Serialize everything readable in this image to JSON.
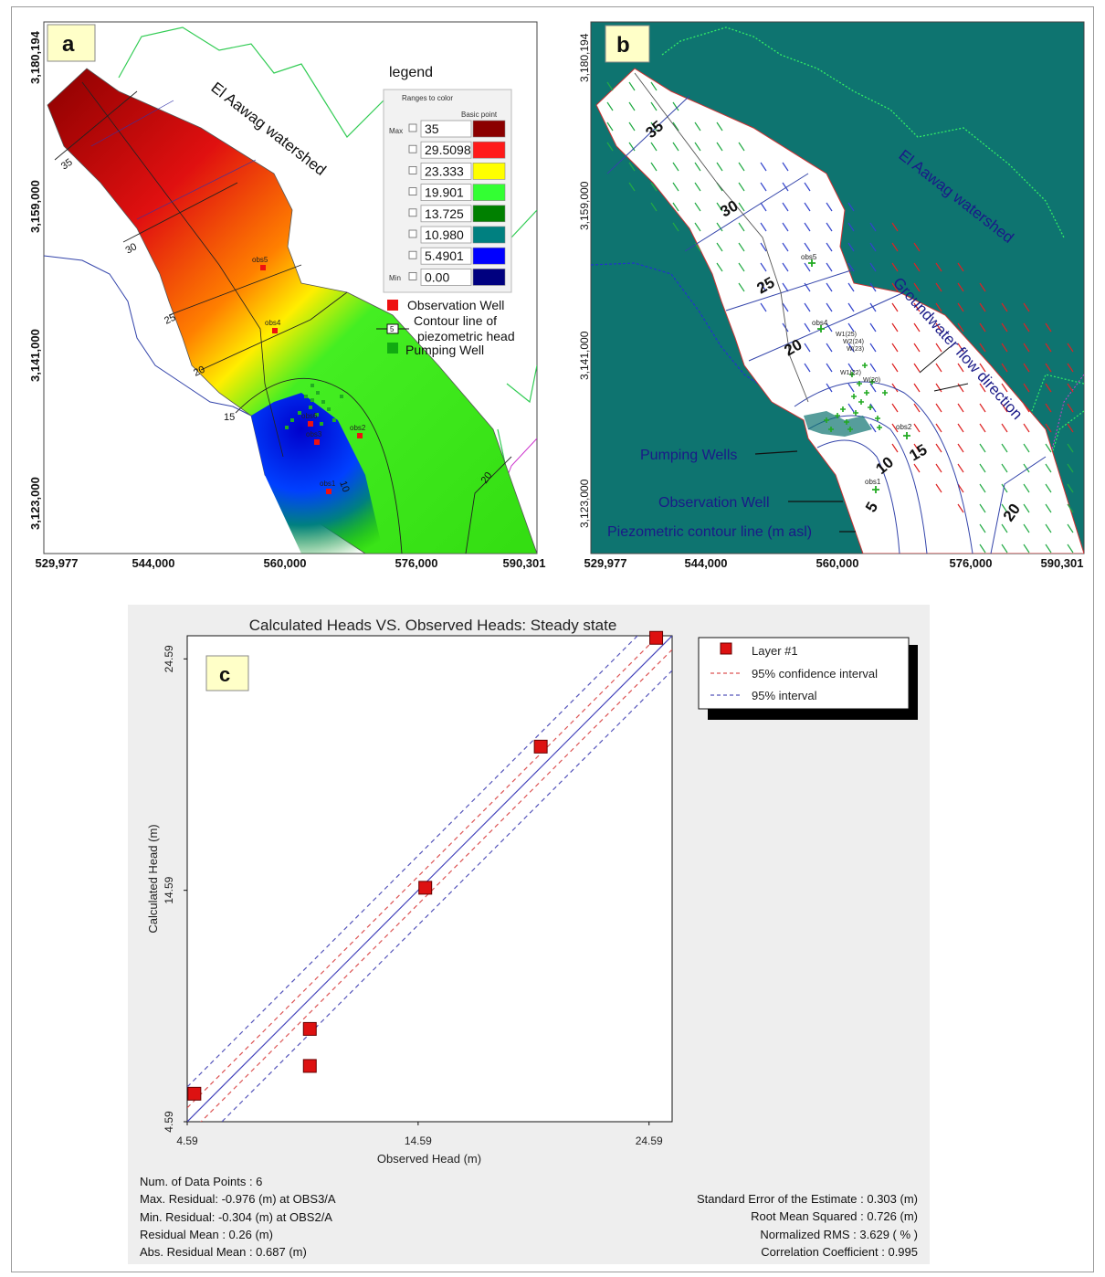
{
  "panel_a": {
    "label": "a",
    "watershed_label": "El Aawag watershed",
    "legend_title": "legend",
    "ranges_title": "Ranges to color",
    "basic_point_label": "Basic point",
    "max_label": "Max",
    "min_label": "Min",
    "ranges": [
      {
        "value": "35",
        "color": "#8b0000"
      },
      {
        "value": "29.5098",
        "color": "#ff1a1a"
      },
      {
        "value": "23.333",
        "color": "#ffff00"
      },
      {
        "value": "19.901",
        "color": "#33ff33"
      },
      {
        "value": "13.725",
        "color": "#008000"
      },
      {
        "value": "10.980",
        "color": "#008080"
      },
      {
        "value": "5.4901",
        "color": "#0000ff"
      },
      {
        "value": "0.00",
        "color": "#00007f"
      }
    ],
    "legend_items": {
      "observation": "Observation Well",
      "contour_line1": "Contour line of",
      "contour_line2": "piezometric head",
      "contour_symbol": "5",
      "pumping": "Pumping Well"
    },
    "contours": [
      "35",
      "30",
      "25",
      "20",
      "15",
      "10",
      "20"
    ],
    "obs_wells": [
      "obs5",
      "obs4",
      "obs6",
      "obs3",
      "obs2",
      "obs1"
    ],
    "y_ticks": [
      "3,180,194",
      "3,159,000",
      "3,141,000",
      "3,123,000"
    ],
    "x_ticks": [
      "529,977",
      "544,000",
      "560,000",
      "576,000",
      "590,301"
    ]
  },
  "panel_b": {
    "label": "b",
    "watershed_label": "El Aawag watershed",
    "flow_label": "Groundwater flow direction",
    "pumping_label": "Pumping Wells",
    "observation_label": "Observation Well",
    "contour_label": "Piezometric contour line (m asl)",
    "contours": [
      "35",
      "30",
      "25",
      "20",
      "15",
      "10",
      "5",
      "20"
    ],
    "obs_wells": [
      "obs5",
      "obs4",
      "obs2",
      "obs1"
    ],
    "y_ticks": [
      "3,180,194",
      "3,159,000",
      "3,141,000",
      "3,123,000"
    ],
    "x_ticks": [
      "529,977",
      "544,000",
      "560,000",
      "576,000",
      "590,301"
    ]
  },
  "panel_c": {
    "label": "c",
    "title": "Calculated Heads VS. Observed Heads: Steady state",
    "legend": {
      "layer": "Layer #1",
      "ci95": "95% confidence interval",
      "i95": "95% interval"
    },
    "stats_left": [
      "Num. of Data Points : 6",
      "Max. Residual: -0.976 (m) at OBS3/A",
      "Min. Residual: -0.304 (m) at OBS2/A",
      "Residual Mean : 0.26 (m)",
      "Abs. Residual Mean : 0.687 (m)"
    ],
    "stats_right": [
      "Standard Error of the Estimate : 0.303 (m)",
      "Root Mean Squared : 0.726 (m)",
      "Normalized RMS : 3.629 ( % )",
      "Correlation Coefficient : 0.995"
    ]
  },
  "chart_data": {
    "type": "scatter",
    "title": "Calculated Heads VS. Observed Heads: Steady state",
    "xlabel": "Observed Head (m)",
    "ylabel": "Calculated Head (m)",
    "xlim": [
      4.59,
      25.59
    ],
    "ylim": [
      4.59,
      25.59
    ],
    "x_ticks": [
      "4.59",
      "14.59",
      "24.59"
    ],
    "y_ticks": [
      "4.59",
      "14.59",
      "24.59"
    ],
    "series": [
      {
        "name": "Layer #1",
        "color": "#dd1111",
        "x": [
          4.9,
          9.9,
          9.9,
          14.9,
          19.9,
          24.9
        ],
        "y": [
          5.8,
          7.0,
          8.6,
          14.7,
          20.8,
          25.5
        ]
      }
    ],
    "lines": [
      {
        "name": "95% confidence interval",
        "color": "#dd5555",
        "style": "dashed"
      },
      {
        "name": "95% interval",
        "color": "#5555bb",
        "style": "dashed"
      }
    ],
    "legend_position": "top-right"
  }
}
